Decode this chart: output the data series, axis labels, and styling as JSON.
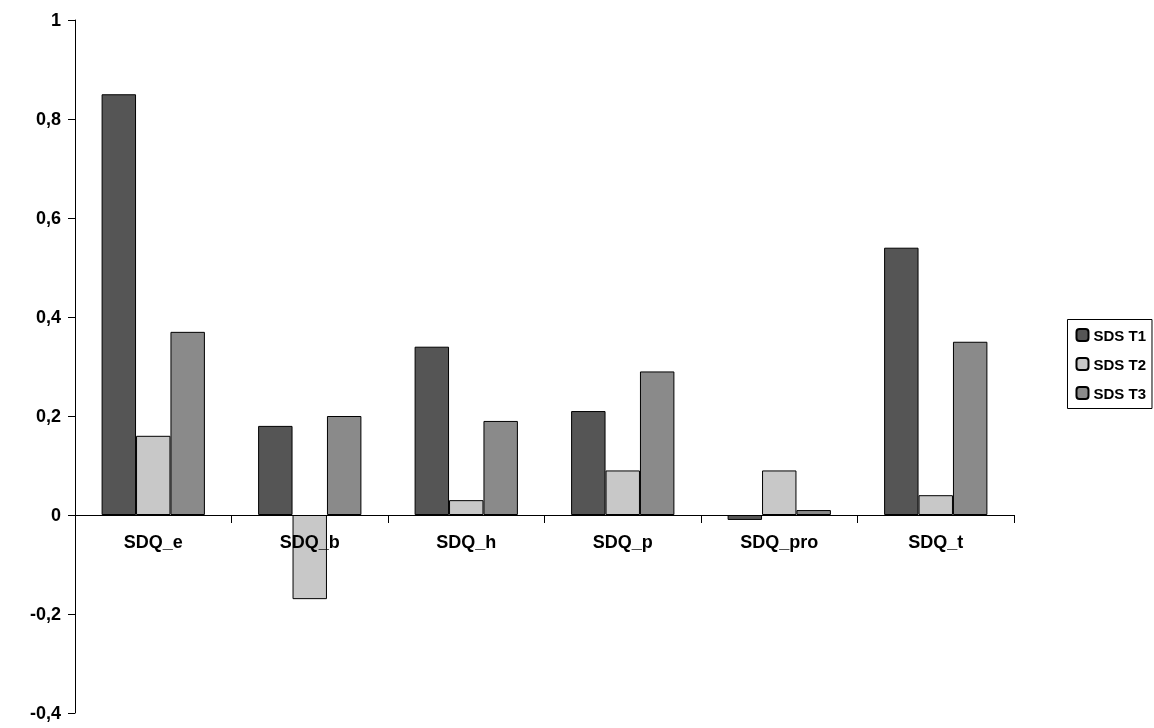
{
  "chart_data": {
    "type": "bar",
    "categories": [
      "SDQ_e",
      "SDQ_b",
      "SDQ_h",
      "SDQ_p",
      "SDQ_pro",
      "SDQ_t"
    ],
    "series": [
      {
        "name": "SDS T1",
        "color": "#555555",
        "values": [
          0.85,
          0.18,
          0.34,
          0.21,
          -0.01,
          0.54
        ]
      },
      {
        "name": "SDS T2",
        "color": "#c8c8c8",
        "values": [
          0.16,
          -0.17,
          0.03,
          0.09,
          0.09,
          0.04
        ]
      },
      {
        "name": "SDS T3",
        "color": "#8a8a8a",
        "values": [
          0.37,
          0.2,
          0.19,
          0.29,
          0.01,
          0.35
        ]
      }
    ],
    "ylim": [
      -0.4,
      1
    ],
    "yticks": [
      {
        "value": -0.4,
        "label": "-0,4"
      },
      {
        "value": -0.2,
        "label": "-0,2"
      },
      0,
      {
        "value": 0.2,
        "label": "0,2"
      },
      {
        "value": 0.4,
        "label": "0,4"
      },
      {
        "value": 0.6,
        "label": "0,6"
      },
      {
        "value": 0.8,
        "label": "0,8"
      },
      1
    ],
    "legend": "right"
  }
}
